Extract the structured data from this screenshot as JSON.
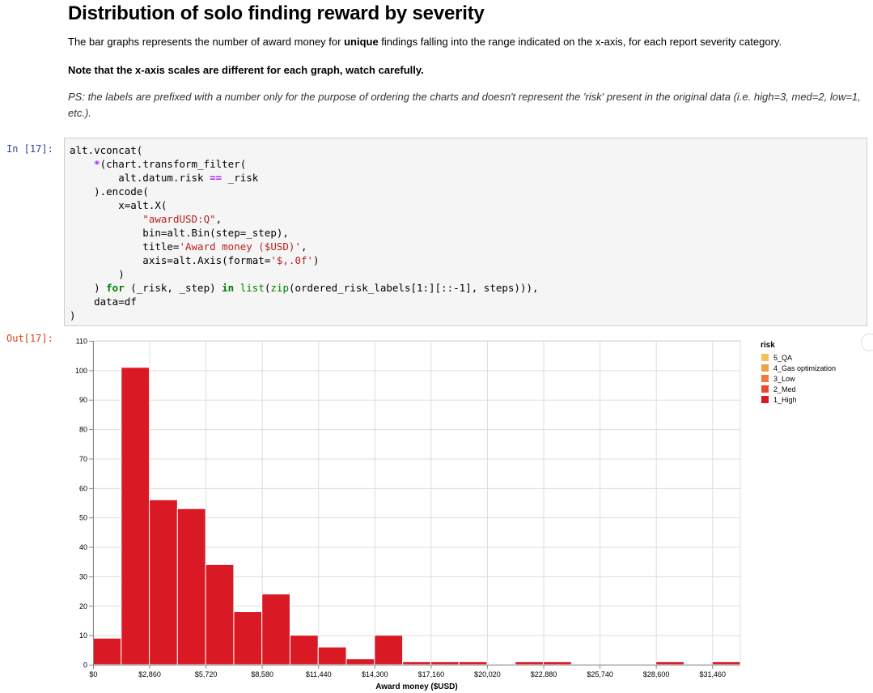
{
  "markdown": {
    "title": "Distribution of solo finding reward by severity",
    "p1_a": "The bar graphs represents the number of award money for ",
    "p1_bold": "unique",
    "p1_b": " findings falling into the range indicated on the x-axis, for each report severity category.",
    "p2": "Note that the x-axis scales are different for each graph, watch carefully.",
    "p3": "PS: the labels are prefixed with a number only for the purpose of ordering the charts and doesn't represent the 'risk' present in the original data (i.e. high=3, med=2, low=1, etc.)."
  },
  "prompts": {
    "in": "In [17]:",
    "out": "Out[17]:"
  },
  "code_lines": [
    "alt.vconcat(",
    "    *(chart.transform_filter(",
    "        alt.datum.risk == _risk",
    "    ).encode(",
    "        x=alt.X(",
    "            \"awardUSD:Q\",",
    "            bin=alt.Bin(step=_step),",
    "            title='Award money ($USD)',",
    "            axis=alt.Axis(format='$,.0f')",
    "        )",
    "    ) for (_risk, _step) in list(zip(ordered_risk_labels[1:][::-1], steps))),",
    "    data=df",
    ")"
  ],
  "chart_data": {
    "type": "bar",
    "title": "",
    "xlabel": "Award money ($USD)",
    "ylabel": "",
    "bin_step": 1430,
    "bins_start": [
      0,
      1430,
      2860,
      4290,
      5720,
      7150,
      8580,
      10010,
      11440,
      12870,
      14300,
      15730,
      17160,
      18590,
      20020,
      21450,
      22880,
      24310,
      25740,
      27170,
      28600,
      30030,
      31460
    ],
    "values": [
      9,
      101,
      56,
      53,
      34,
      18,
      24,
      10,
      6,
      2,
      10,
      1,
      1,
      1,
      0,
      1,
      1,
      0,
      0,
      0,
      1,
      0,
      1
    ],
    "xlim": [
      0,
      32890
    ],
    "ylim": [
      0,
      110
    ],
    "x_ticks": [
      "$0",
      "$2,860",
      "$5,720",
      "$8,580",
      "$11,440",
      "$14,300",
      "$17,160",
      "$20,020",
      "$22,880",
      "$25,740",
      "$28,600",
      "$31,460"
    ],
    "x_tick_values": [
      0,
      2860,
      5720,
      8580,
      11440,
      14300,
      17160,
      20020,
      22880,
      25740,
      28600,
      31460
    ],
    "y_ticks": [
      0,
      10,
      20,
      30,
      40,
      50,
      60,
      70,
      80,
      90,
      100,
      110
    ],
    "bar_color": "#d91a25",
    "grid": true,
    "legend": {
      "title": "risk",
      "placement": "top-right",
      "items": [
        {
          "label": "5_QA",
          "color": "#f6c15b"
        },
        {
          "label": "4_Gas optimization",
          "color": "#f29f4a"
        },
        {
          "label": "3_Low",
          "color": "#f07a3e"
        },
        {
          "label": "2_Med",
          "color": "#ea4a30"
        },
        {
          "label": "1_High",
          "color": "#d91a25"
        }
      ]
    }
  }
}
